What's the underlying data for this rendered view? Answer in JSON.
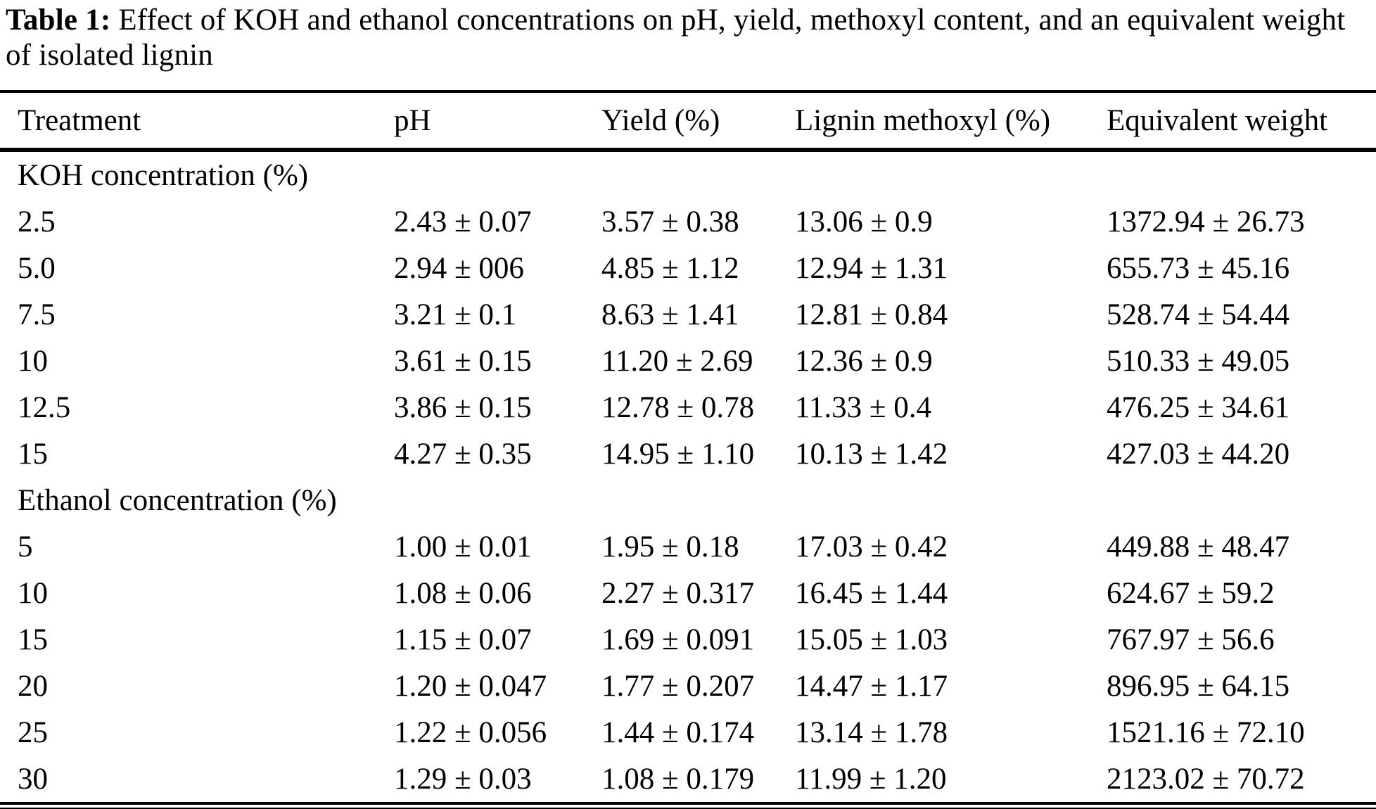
{
  "caption": {
    "label": "Table 1:",
    "text": "Effect of KOH and ethanol concentrations on pH, yield, methoxyl content, and an equivalent weight of isolated lignin"
  },
  "table": {
    "columns": [
      "Treatment",
      "pH",
      "Yield (%)",
      "Lignin methoxyl (%)",
      "Equivalent weight"
    ],
    "sections": [
      {
        "header": "KOH concentration (%)",
        "rows": [
          [
            "2.5",
            "2.43 ± 0.07",
            "3.57 ± 0.38",
            "13.06 ± 0.9",
            "1372.94 ± 26.73"
          ],
          [
            "5.0",
            "2.94 ± 006",
            "4.85 ± 1.12",
            "12.94 ± 1.31",
            "655.73 ± 45.16"
          ],
          [
            "7.5",
            "3.21 ± 0.1",
            "8.63 ± 1.41",
            "12.81 ± 0.84",
            "528.74 ± 54.44"
          ],
          [
            "10",
            "3.61 ± 0.15",
            "11.20 ± 2.69",
            "12.36 ± 0.9",
            "510.33 ± 49.05"
          ],
          [
            "12.5",
            "3.86 ± 0.15",
            "12.78 ± 0.78",
            "11.33 ± 0.4",
            "476.25 ± 34.61"
          ],
          [
            "15",
            "4.27 ± 0.35",
            "14.95 ± 1.10",
            "10.13 ± 1.42",
            "427.03 ± 44.20"
          ]
        ]
      },
      {
        "header": "Ethanol concentration (%)",
        "rows": [
          [
            "5",
            "1.00 ± 0.01",
            "1.95 ± 0.18",
            "17.03 ± 0.42",
            "449.88 ± 48.47"
          ],
          [
            "10",
            "1.08 ± 0.06",
            "2.27 ± 0.317",
            "16.45 ± 1.44",
            "624.67 ± 59.2"
          ],
          [
            "15",
            "1.15 ± 0.07",
            "1.69 ± 0.091",
            "15.05 ± 1.03",
            "767.97 ± 56.6"
          ],
          [
            "20",
            "1.20 ± 0.047",
            "1.77 ± 0.207",
            "14.47 ± 1.17",
            "896.95 ± 64.15"
          ],
          [
            "25",
            "1.22 ± 0.056",
            "1.44 ± 0.174",
            "13.14 ± 1.78",
            "1521.16 ± 72.10"
          ],
          [
            "30",
            "1.29 ± 0.03",
            "1.08 ± 0.179",
            "11.99 ± 1.20",
            "2123.02 ± 70.72"
          ]
        ]
      }
    ]
  }
}
